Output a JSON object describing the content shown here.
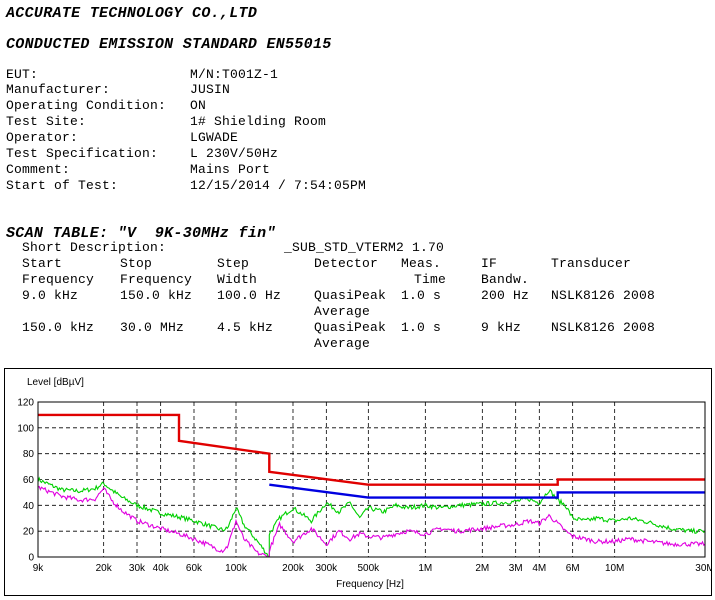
{
  "header": {
    "company": "ACCURATE TECHNOLOGY CO.,LTD",
    "standard": "CONDUCTED EMISSION STANDARD EN55015"
  },
  "info": [
    {
      "label": "EUT:",
      "value": "M/N:T001Z-1"
    },
    {
      "label": "Manufacturer:",
      "value": "JUSIN"
    },
    {
      "label": "Operating Condition:",
      "value": "ON"
    },
    {
      "label": "Test Site:",
      "value": "1# Shielding Room"
    },
    {
      "label": "Operator:",
      "value": "LGWADE"
    },
    {
      "label": "Test Specification:",
      "value": "L 230V/50Hz"
    },
    {
      "label": "Comment:",
      "value": "Mains Port"
    },
    {
      "label": "Start of Test:",
      "value": "12/15/2014 / 7:54:05PM"
    }
  ],
  "scan_table": {
    "title": "SCAN TABLE: \"V  9K-30MHz fin\"",
    "short_description_label": "Short Description:",
    "short_description_value": "_SUB_STD_VTERM2 1.70",
    "headers_row1": [
      "Start",
      "Stop",
      "Step",
      "Detector",
      "Meas.",
      "IF",
      "Transducer"
    ],
    "headers_row2": [
      "Frequency",
      "Frequency",
      "Width",
      "",
      "Time",
      "Bandw.",
      ""
    ],
    "rows": [
      {
        "start": "9.0 kHz",
        "stop": "150.0 kHz",
        "step": "100.0 Hz",
        "detector": "QuasiPeak",
        "detector2": "Average",
        "time": "1.0 s",
        "ifbw": "200 Hz",
        "transducer": "NSLK8126 2008"
      },
      {
        "start": "150.0 kHz",
        "stop": "30.0 MHz",
        "step": "4.5 kHz",
        "detector": "QuasiPeak",
        "detector2": "Average",
        "time": "1.0 s",
        "ifbw": "9 kHz",
        "transducer": "NSLK8126 2008"
      }
    ]
  },
  "chart_data": {
    "type": "line",
    "ylabel": "Level [dBµV]",
    "xlabel": "Frequency [Hz]",
    "xscale": "log",
    "xlim": [
      9000,
      30000000
    ],
    "ylim": [
      0,
      120
    ],
    "grid": true,
    "yticks": [
      0,
      20,
      40,
      60,
      80,
      100,
      120
    ],
    "xticks": [
      {
        "v": 9000,
        "label": "9k"
      },
      {
        "v": 20000,
        "label": "20k"
      },
      {
        "v": 30000,
        "label": "30k"
      },
      {
        "v": 40000,
        "label": "40k"
      },
      {
        "v": 60000,
        "label": "60k"
      },
      {
        "v": 100000,
        "label": "100k"
      },
      {
        "v": 200000,
        "label": "200k"
      },
      {
        "v": 300000,
        "label": "300k"
      },
      {
        "v": 500000,
        "label": "500k"
      },
      {
        "v": 1000000,
        "label": "1M"
      },
      {
        "v": 2000000,
        "label": "2M"
      },
      {
        "v": 3000000,
        "label": "3M"
      },
      {
        "v": 4000000,
        "label": "4M"
      },
      {
        "v": 6000000,
        "label": "6M"
      },
      {
        "v": 10000000,
        "label": "10M"
      },
      {
        "v": 30000000,
        "label": "30M"
      }
    ],
    "colors": {
      "qp_limit": "#e00000",
      "avg_limit": "#0000e0",
      "qp_trace": "#00d000",
      "avg_trace": "#e000e0"
    },
    "series": [
      {
        "key": "qp_limit",
        "x": [
          9000,
          50000,
          50000,
          150000,
          150000,
          500000,
          5000000,
          5000000,
          30000000
        ],
        "y": [
          110,
          110,
          90,
          80,
          66,
          56,
          56,
          60,
          60
        ]
      },
      {
        "key": "avg_limit",
        "x": [
          150000,
          500000,
          5000000,
          5000000,
          30000000
        ],
        "y": [
          56,
          46,
          46,
          50,
          50
        ]
      },
      {
        "key": "qp_trace",
        "x": [
          9000,
          12000,
          15000,
          18000,
          20000,
          22000,
          25000,
          30000,
          40000,
          50000,
          60000,
          70000,
          80000,
          85000,
          90000,
          95000,
          100000,
          110000,
          130000,
          150000,
          150000,
          170000,
          200000,
          250000,
          300000,
          350000,
          400000,
          450000,
          500000,
          600000,
          700000,
          800000,
          1000000,
          1200000,
          1500000,
          2000000,
          2500000,
          3000000,
          3500000,
          4000000,
          4500000,
          5000000,
          5500000,
          6000000,
          7000000,
          8000000,
          10000000,
          12000000,
          15000000,
          20000000,
          25000000,
          30000000
        ],
        "y": [
          60,
          52,
          51,
          53,
          57,
          52,
          46,
          40,
          34,
          31,
          28,
          25,
          22,
          21,
          22,
          30,
          38,
          25,
          12,
          0,
          18,
          30,
          38,
          28,
          42,
          35,
          42,
          30,
          38,
          35,
          40,
          38,
          40,
          38,
          40,
          41,
          42,
          43,
          45,
          42,
          52,
          44,
          40,
          30,
          28,
          30,
          28,
          30,
          27,
          22,
          20,
          20
        ]
      },
      {
        "key": "avg_trace",
        "x": [
          9000,
          12000,
          15000,
          18000,
          20000,
          22000,
          25000,
          30000,
          40000,
          50000,
          60000,
          70000,
          80000,
          85000,
          90000,
          95000,
          100000,
          110000,
          130000,
          150000,
          150000,
          170000,
          200000,
          250000,
          300000,
          350000,
          400000,
          450000,
          500000,
          600000,
          700000,
          800000,
          1000000,
          1200000,
          1500000,
          2000000,
          2500000,
          3000000,
          3500000,
          4000000,
          4500000,
          5000000,
          5500000,
          6000000,
          7000000,
          8000000,
          10000000,
          12000000,
          15000000,
          20000000,
          25000000,
          30000000
        ],
        "y": [
          54,
          47,
          44,
          45,
          53,
          44,
          36,
          28,
          22,
          18,
          14,
          10,
          6,
          5,
          8,
          18,
          28,
          14,
          3,
          0,
          5,
          25,
          12,
          22,
          10,
          20,
          14,
          18,
          16,
          15,
          18,
          20,
          18,
          22,
          20,
          22,
          24,
          25,
          28,
          26,
          32,
          26,
          20,
          16,
          14,
          12,
          12,
          14,
          12,
          10,
          10,
          10
        ]
      }
    ]
  }
}
